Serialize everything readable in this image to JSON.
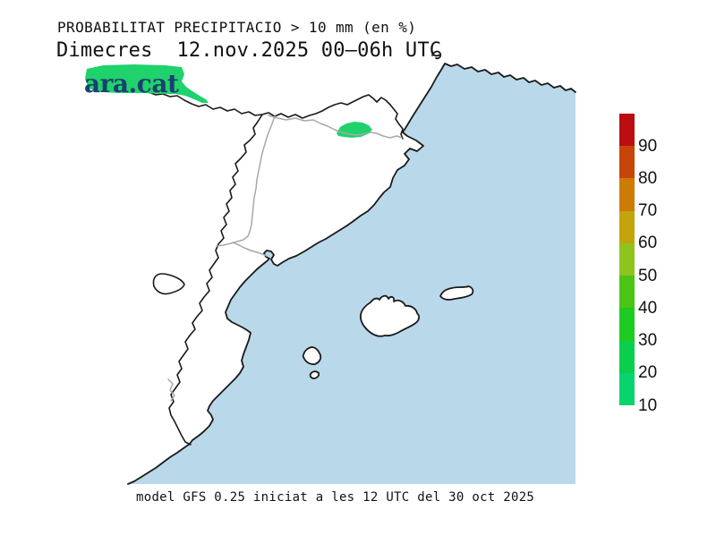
{
  "header": {
    "title": "PROBABILITAT PRECIPITACIO > 10 mm (en %)",
    "subtitle": "Dimecres  12.nov.2025 00–06h UTC"
  },
  "branding": {
    "logo_text": "ara.cat",
    "logo_color": "#1b4070"
  },
  "footer": {
    "model_info": "model GFS 0.25 iniciat a les 12 UTC del 30 oct 2025"
  },
  "map": {
    "sea_color": "#b9d8ea",
    "land_color": "#ffffff",
    "coast_color": "#1a1a1a",
    "province_border_color": "#a8a8a8",
    "precip_areas": [
      {
        "name": "area-southwest-france",
        "probability_range": "10-20",
        "color": "#1fd26c"
      },
      {
        "name": "area-pyrenees",
        "probability_range": "10-20",
        "color": "#1fd26c"
      }
    ]
  },
  "legend": {
    "unit": "%",
    "ticks": [
      "90",
      "80",
      "70",
      "60",
      "50",
      "40",
      "30",
      "20",
      "10"
    ],
    "segments": [
      {
        "range": "90-100",
        "color": "#bb0d10"
      },
      {
        "range": "80-90",
        "color": "#c54509"
      },
      {
        "range": "70-80",
        "color": "#cc7b05"
      },
      {
        "range": "60-70",
        "color": "#c3a40a"
      },
      {
        "range": "50-60",
        "color": "#8ec41d"
      },
      {
        "range": "40-50",
        "color": "#4cc417"
      },
      {
        "range": "30-40",
        "color": "#1ecb22"
      },
      {
        "range": "20-30",
        "color": "#0bce4d"
      },
      {
        "range": "10-20",
        "color": "#09d36e"
      }
    ]
  }
}
